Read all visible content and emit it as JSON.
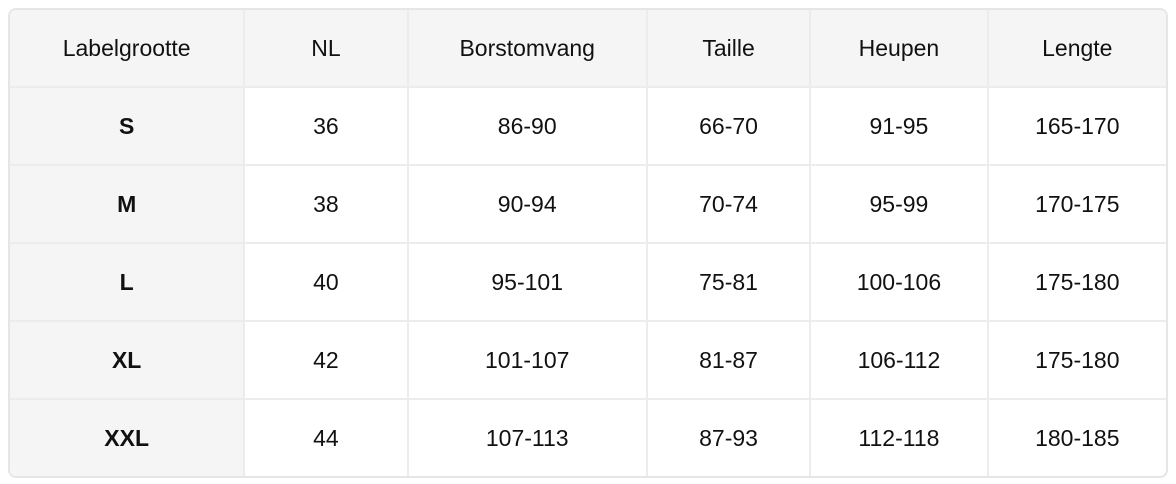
{
  "table": {
    "headers": [
      "Labelgrootte",
      "NL",
      "Borstomvang",
      "Taille",
      "Heupen",
      "Lengte"
    ],
    "rows": [
      [
        "S",
        "36",
        "86-90",
        "66-70",
        "91-95",
        "165-170"
      ],
      [
        "M",
        "38",
        "90-94",
        "70-74",
        "95-99",
        "170-175"
      ],
      [
        "L",
        "40",
        "95-101",
        "75-81",
        "100-106",
        "175-180"
      ],
      [
        "XL",
        "42",
        "101-107",
        "81-87",
        "106-112",
        "175-180"
      ],
      [
        "XXL",
        "44",
        "107-113",
        "87-93",
        "112-118",
        "180-185"
      ]
    ]
  }
}
